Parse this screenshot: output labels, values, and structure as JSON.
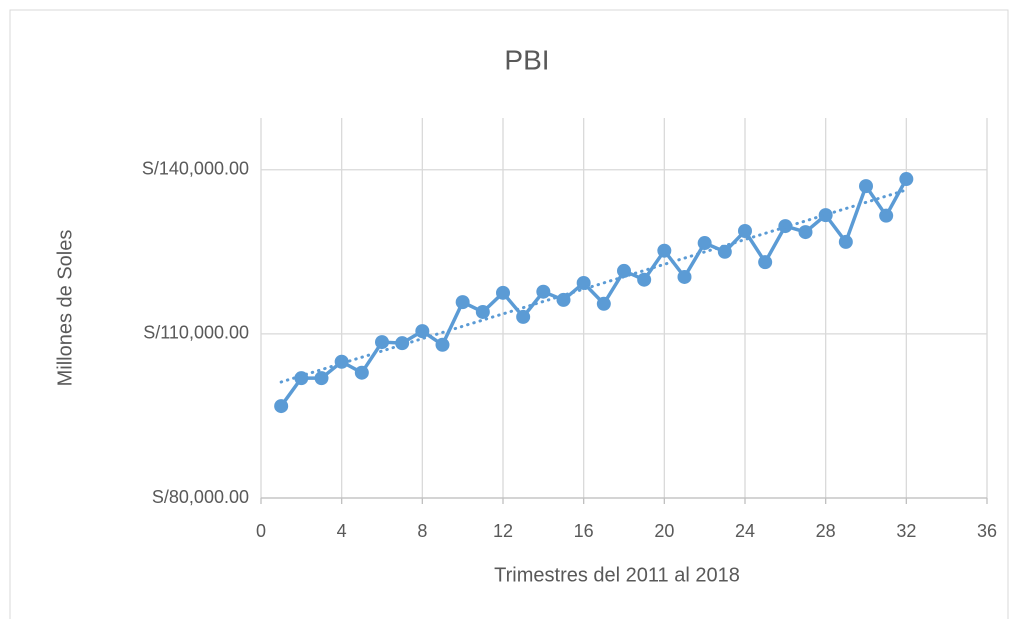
{
  "chart_data": {
    "type": "scatter",
    "title": "PBI",
    "x_label": "Trimestres del 2011 al 2018",
    "y_label": "Millones de Soles",
    "xlim": [
      0,
      36
    ],
    "xticks": [
      0,
      4,
      8,
      12,
      16,
      20,
      24,
      28,
      32,
      36
    ],
    "ylim": [
      80000,
      150000
    ],
    "yticks": [
      {
        "value": 80000,
        "label": "S/80,000.00"
      },
      {
        "value": 110000,
        "label": "S/110,000.00"
      },
      {
        "value": 140000,
        "label": "S/140,000.00"
      }
    ],
    "grid": true,
    "series": [
      {
        "color": "#5b9bd5",
        "line": "solid",
        "markers": true,
        "x": [
          1,
          2,
          3,
          4,
          5,
          6,
          7,
          8,
          9,
          10,
          11,
          12,
          13,
          14,
          15,
          16,
          17,
          18,
          19,
          20,
          21,
          22,
          23,
          24,
          25,
          26,
          27,
          28,
          29,
          30,
          31,
          32
        ],
        "values": [
          96800,
          101900,
          101900,
          104900,
          102900,
          108500,
          108300,
          110500,
          108000,
          115800,
          114000,
          117500,
          113100,
          117700,
          116200,
          119300,
          115500,
          121500,
          119900,
          125200,
          120400,
          126600,
          125000,
          128800,
          123100,
          129700,
          128600,
          131700,
          126800,
          137000,
          131600,
          138300
        ]
      },
      {
        "color": "#5b9bd5",
        "line": "dotted",
        "markers": false,
        "x": [
          1,
          32
        ],
        "values": [
          101200,
          136300
        ]
      }
    ]
  }
}
